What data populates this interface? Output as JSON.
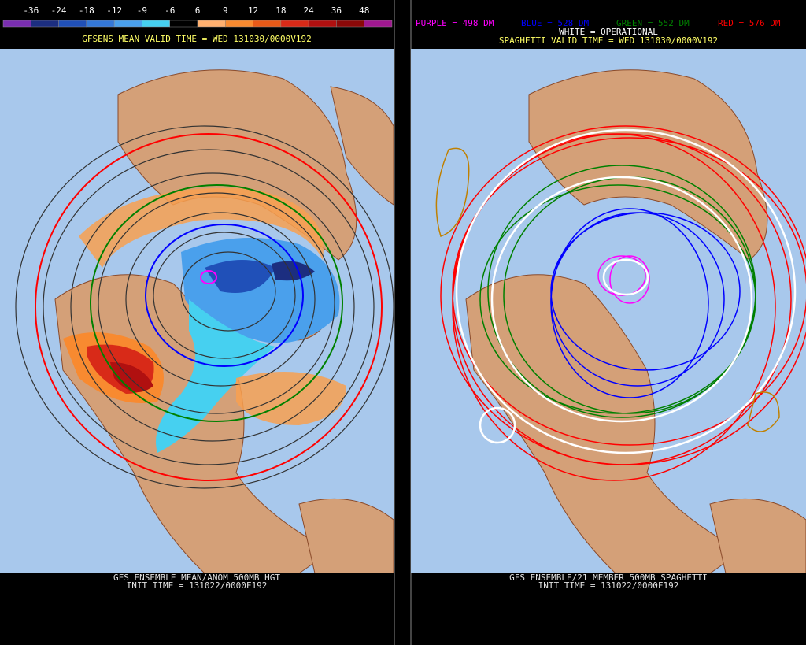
{
  "left_panel": {
    "color_scale": [
      {
        "label": null,
        "color": "#7a2eb0"
      },
      {
        "label": "-36",
        "color": "#1c2e80"
      },
      {
        "label": "-24",
        "color": "#2050b8"
      },
      {
        "label": "-18",
        "color": "#3478d8"
      },
      {
        "label": "-12",
        "color": "#4aa0ec"
      },
      {
        "label": "-9",
        "color": "#46d0f0"
      },
      {
        "label": "-6",
        "color": "#000000"
      },
      {
        "label": "6",
        "color": "#ffb070"
      },
      {
        "label": "9",
        "color": "#f88a30"
      },
      {
        "label": "12",
        "color": "#e85a18"
      },
      {
        "label": "18",
        "color": "#d82a18"
      },
      {
        "label": "24",
        "color": "#b01010"
      },
      {
        "label": "36",
        "color": "#8a0808"
      },
      {
        "label": "48",
        "color": "#a01890"
      }
    ],
    "title": "GFSENS MEAN VALID TIME = WED 131030/0000V192",
    "footer": [
      "GFS ENSEMBLE MEAN/ANOM 500MB HGT",
      "INIT TIME = 131022/0000F192"
    ]
  },
  "right_panel": {
    "legend": [
      {
        "label": "PURPLE = 498 DM",
        "color": "#ff00ff"
      },
      {
        "label": "BLUE = 528 DM",
        "color": "#0000ff"
      },
      {
        "label": "GREEN = 552 DM",
        "color": "#008000"
      },
      {
        "label": "RED = 576 DM",
        "color": "#ff0000"
      }
    ],
    "operational": "WHITE = OPERATIONAL",
    "title": "SPAGHETTI VALID TIME = WED 131030/0000V192",
    "footer": [
      "GFS ENSEMBLE/21 MEMBER 500MB SPAGHETTI",
      "INIT TIME = 131022/0000F192"
    ]
  }
}
